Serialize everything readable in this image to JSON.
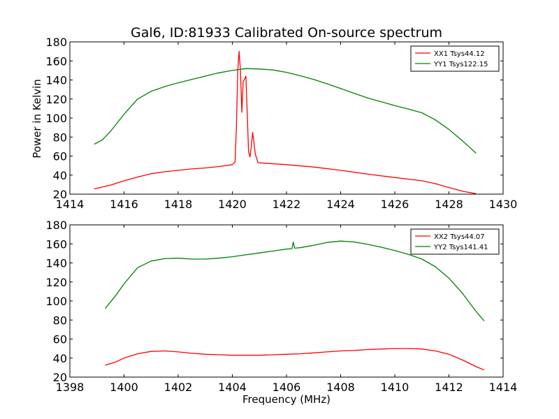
{
  "chart_data": [
    {
      "type": "line",
      "title": "Gal6, ID:81933 Calibrated On-source spectrum",
      "xlabel": "",
      "ylabel": "Power in Kelvin",
      "xlim": [
        1414,
        1430
      ],
      "ylim": [
        20,
        180
      ],
      "xticks": [
        1414,
        1416,
        1418,
        1420,
        1422,
        1424,
        1426,
        1428,
        1430
      ],
      "yticks": [
        20,
        40,
        60,
        80,
        100,
        120,
        140,
        160,
        180
      ],
      "legend_position": "upper right",
      "series": [
        {
          "name": "XX1 Tsys44.12",
          "color": "#ff0000",
          "points": [
            [
              1414.9,
              25.5
            ],
            [
              1415.5,
              29.5
            ],
            [
              1416.0,
              34.0
            ],
            [
              1416.5,
              38.0
            ],
            [
              1417.0,
              41.5
            ],
            [
              1417.5,
              43.5
            ],
            [
              1418.0,
              45.0
            ],
            [
              1418.5,
              46.5
            ],
            [
              1419.0,
              47.5
            ],
            [
              1419.5,
              49.0
            ],
            [
              1420.0,
              51.0
            ],
            [
              1420.1,
              54.0
            ],
            [
              1420.15,
              90.0
            ],
            [
              1420.2,
              150.0
            ],
            [
              1420.25,
              170.0
            ],
            [
              1420.3,
              150.0
            ],
            [
              1420.35,
              106.0
            ],
            [
              1420.4,
              138.0
            ],
            [
              1420.5,
              144.0
            ],
            [
              1420.55,
              105.0
            ],
            [
              1420.6,
              65.0
            ],
            [
              1420.65,
              59.0
            ],
            [
              1420.7,
              70.0
            ],
            [
              1420.75,
              85.0
            ],
            [
              1420.85,
              62.0
            ],
            [
              1420.95,
              53.0
            ],
            [
              1421.2,
              52.5
            ],
            [
              1422.0,
              51.0
            ],
            [
              1423.0,
              48.5
            ],
            [
              1424.0,
              45.0
            ],
            [
              1425.0,
              41.0
            ],
            [
              1426.0,
              37.5
            ],
            [
              1427.0,
              34.0
            ],
            [
              1427.5,
              31.0
            ],
            [
              1428.0,
              27.0
            ],
            [
              1428.5,
              23.0
            ],
            [
              1429.0,
              20.5
            ]
          ]
        },
        {
          "name": "YY1 Tsys122.15",
          "color": "#008000",
          "points": [
            [
              1414.9,
              72.5
            ],
            [
              1415.2,
              77.0
            ],
            [
              1415.5,
              86.0
            ],
            [
              1416.0,
              104.0
            ],
            [
              1416.5,
              120.0
            ],
            [
              1417.0,
              128.0
            ],
            [
              1417.5,
              133.0
            ],
            [
              1418.0,
              137.0
            ],
            [
              1418.5,
              140.5
            ],
            [
              1419.0,
              144.0
            ],
            [
              1419.5,
              147.5
            ],
            [
              1420.0,
              150.0
            ],
            [
              1420.5,
              152.0
            ],
            [
              1421.0,
              151.5
            ],
            [
              1421.5,
              150.5
            ],
            [
              1422.0,
              148.0
            ],
            [
              1422.5,
              144.5
            ],
            [
              1423.0,
              140.5
            ],
            [
              1423.5,
              136.0
            ],
            [
              1424.0,
              131.0
            ],
            [
              1424.5,
              126.0
            ],
            [
              1425.0,
              121.0
            ],
            [
              1425.5,
              117.0
            ],
            [
              1426.0,
              113.0
            ],
            [
              1426.5,
              109.5
            ],
            [
              1427.0,
              105.5
            ],
            [
              1427.5,
              98.0
            ],
            [
              1428.0,
              88.0
            ],
            [
              1428.5,
              76.0
            ],
            [
              1429.0,
              63.0
            ]
          ]
        }
      ]
    },
    {
      "type": "line",
      "title": "",
      "xlabel": "Frequency (MHz)",
      "ylabel": "",
      "xlim": [
        1398,
        1414
      ],
      "ylim": [
        20,
        180
      ],
      "xticks": [
        1398,
        1400,
        1402,
        1404,
        1406,
        1408,
        1410,
        1412,
        1414
      ],
      "yticks": [
        20,
        40,
        60,
        80,
        100,
        120,
        140,
        160,
        180
      ],
      "legend_position": "upper right",
      "series": [
        {
          "name": "XX2 Tsys44.07",
          "color": "#ff0000",
          "points": [
            [
              1399.3,
              32.5
            ],
            [
              1399.7,
              36.0
            ],
            [
              1400.0,
              40.0
            ],
            [
              1400.5,
              44.5
            ],
            [
              1401.0,
              47.0
            ],
            [
              1401.5,
              47.5
            ],
            [
              1402.0,
              46.5
            ],
            [
              1402.5,
              45.0
            ],
            [
              1403.0,
              44.0
            ],
            [
              1403.5,
              43.5
            ],
            [
              1404.0,
              43.0
            ],
            [
              1404.5,
              43.0
            ],
            [
              1405.0,
              43.0
            ],
            [
              1405.5,
              43.5
            ],
            [
              1406.0,
              44.0
            ],
            [
              1406.5,
              44.5
            ],
            [
              1407.0,
              45.5
            ],
            [
              1407.5,
              46.5
            ],
            [
              1408.0,
              47.5
            ],
            [
              1408.5,
              48.0
            ],
            [
              1409.0,
              49.0
            ],
            [
              1409.5,
              49.5
            ],
            [
              1410.0,
              50.0
            ],
            [
              1410.5,
              50.0
            ],
            [
              1411.0,
              49.5
            ],
            [
              1411.5,
              47.5
            ],
            [
              1412.0,
              44.0
            ],
            [
              1412.5,
              38.0
            ],
            [
              1413.0,
              31.0
            ],
            [
              1413.3,
              27.5
            ]
          ]
        },
        {
          "name": "YY2 Tsys141.41",
          "color": "#008000",
          "points": [
            [
              1399.3,
              92.0
            ],
            [
              1399.7,
              106.0
            ],
            [
              1400.0,
              118.0
            ],
            [
              1400.5,
              135.0
            ],
            [
              1401.0,
              142.0
            ],
            [
              1401.5,
              144.5
            ],
            [
              1402.0,
              145.0
            ],
            [
              1402.5,
              144.0
            ],
            [
              1403.0,
              144.0
            ],
            [
              1403.5,
              145.0
            ],
            [
              1404.0,
              146.5
            ],
            [
              1404.5,
              148.5
            ],
            [
              1405.0,
              150.5
            ],
            [
              1405.5,
              152.5
            ],
            [
              1406.0,
              154.5
            ],
            [
              1406.2,
              155.0
            ],
            [
              1406.25,
              162.0
            ],
            [
              1406.3,
              155.5
            ],
            [
              1406.5,
              156.0
            ],
            [
              1407.0,
              158.5
            ],
            [
              1407.5,
              161.5
            ],
            [
              1408.0,
              163.0
            ],
            [
              1408.5,
              162.0
            ],
            [
              1409.0,
              159.5
            ],
            [
              1409.5,
              156.5
            ],
            [
              1410.0,
              153.0
            ],
            [
              1410.5,
              149.0
            ],
            [
              1411.0,
              144.0
            ],
            [
              1411.5,
              136.0
            ],
            [
              1412.0,
              124.0
            ],
            [
              1412.5,
              108.0
            ],
            [
              1413.0,
              89.0
            ],
            [
              1413.3,
              79.0
            ]
          ]
        }
      ]
    }
  ]
}
